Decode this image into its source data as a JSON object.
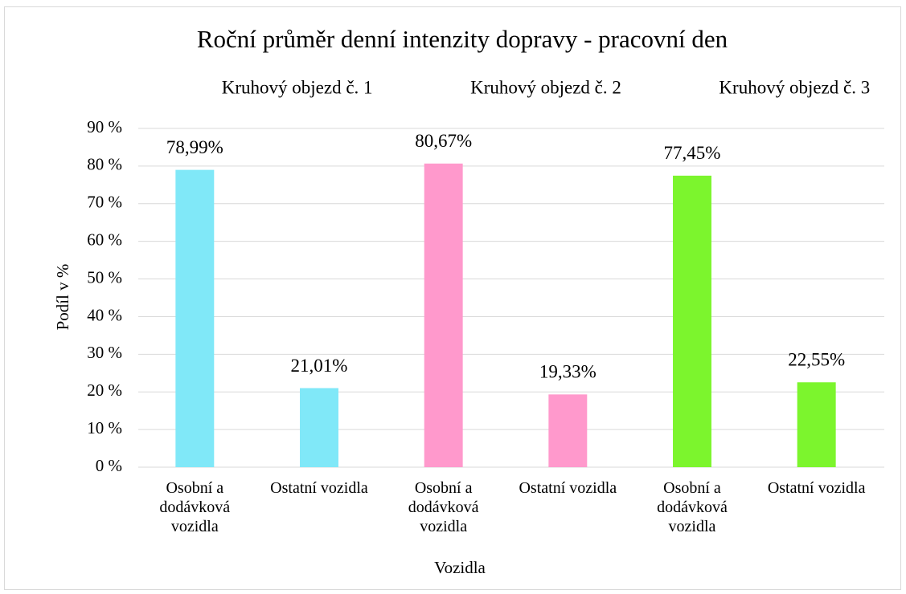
{
  "chart_data": {
    "type": "bar",
    "title": "Roční průměr denní intenzity dopravy - pracovní den",
    "annotations": [
      "Kruhový objezd č. 1",
      "Kruhový objezd č. 2",
      "Kruhový objezd č. 3"
    ],
    "xlabel": "Vozidla",
    "ylabel": "Podíl v %",
    "categories": [
      "Osobní a dodávková vozidla",
      "Ostatní vozidla",
      "Osobní a dodávková vozidla",
      "Ostatní vozidla",
      "Osobní a dodávková vozidla",
      "Ostatní vozidla"
    ],
    "values": [
      78.99,
      21.01,
      80.67,
      19.33,
      77.45,
      22.55
    ],
    "value_labels": [
      "78,99%",
      "21,01%",
      "80,67%",
      "19,33%",
      "77,45%",
      "22,55%"
    ],
    "colors": [
      "#80e8f8",
      "#80e8f8",
      "#ff99cc",
      "#ff99cc",
      "#7cf52d",
      "#7cf52d"
    ],
    "ylim": [
      0,
      90
    ],
    "yticks": [
      {
        "value": 0,
        "label": "0 %"
      },
      {
        "value": 10,
        "label": "10 %"
      },
      {
        "value": 20,
        "label": "20 %"
      },
      {
        "value": 30,
        "label": "30 %"
      },
      {
        "value": 40,
        "label": "40 %"
      },
      {
        "value": 50,
        "label": "50 %"
      },
      {
        "value": 60,
        "label": "60 %"
      },
      {
        "value": 70,
        "label": "70 %"
      },
      {
        "value": 80,
        "label": "80 %"
      },
      {
        "value": 90,
        "label": "90 %"
      }
    ],
    "grid": true
  }
}
